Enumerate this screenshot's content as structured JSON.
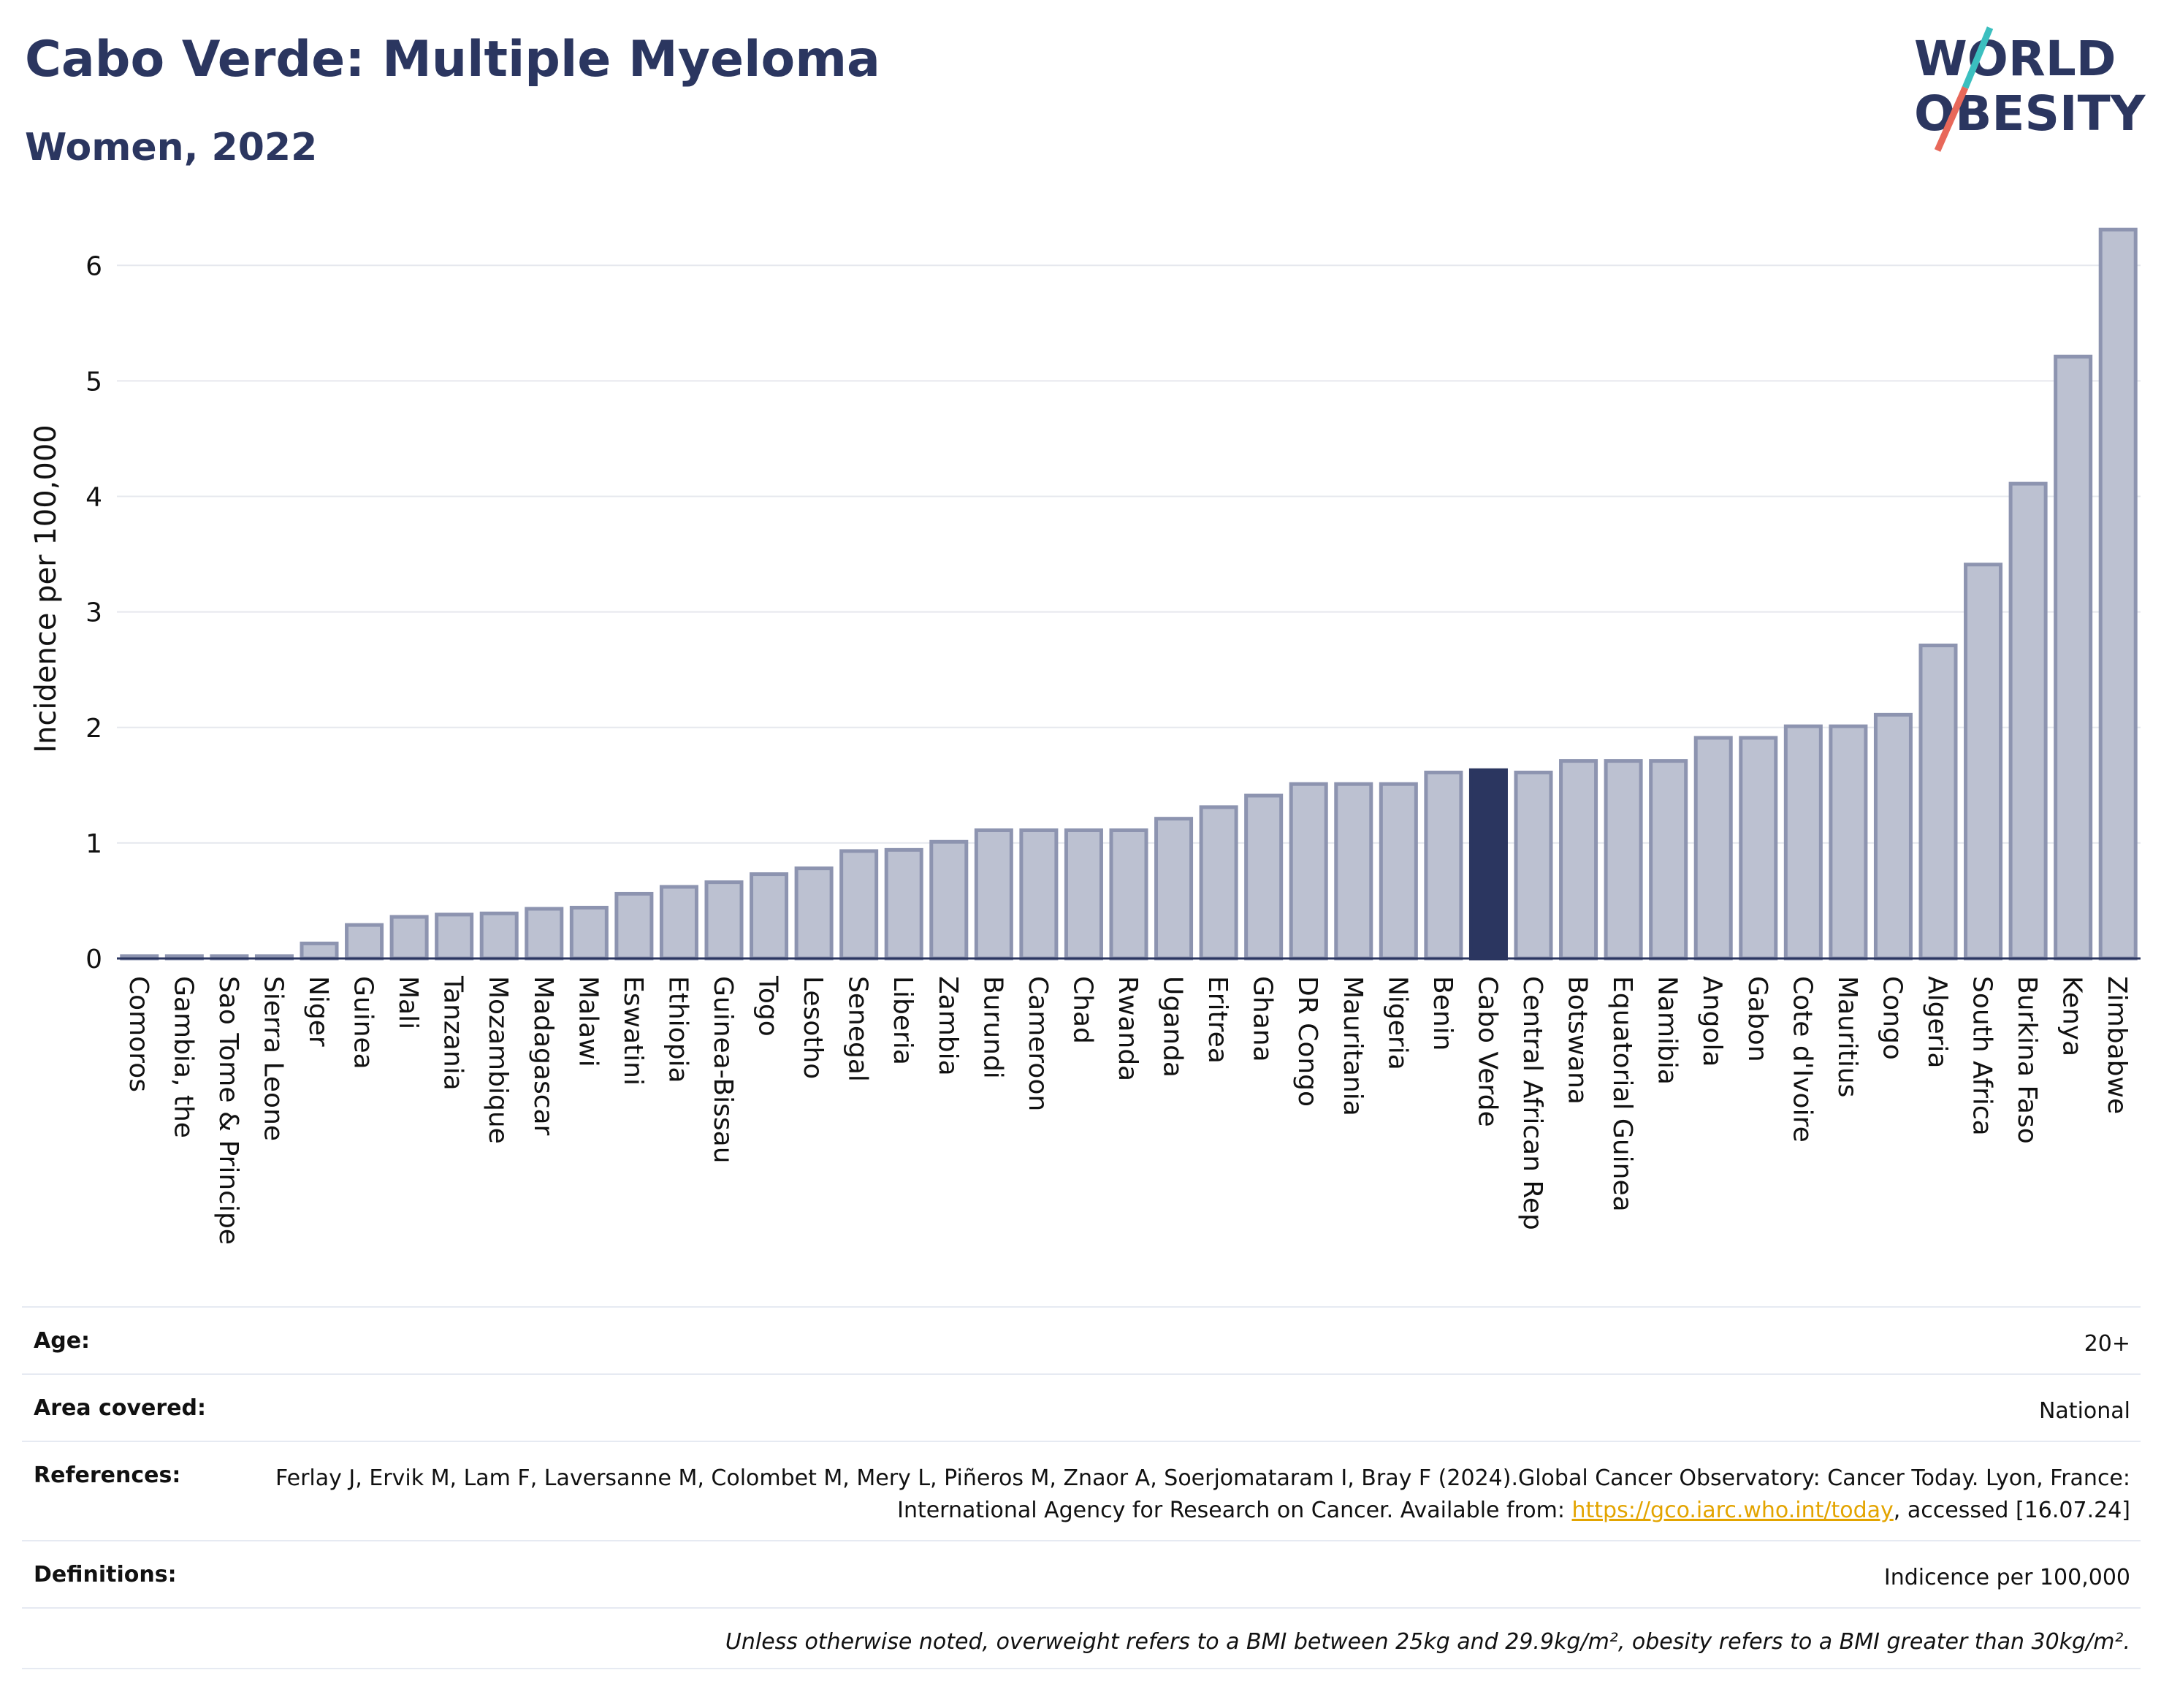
{
  "header": {
    "title": "Cabo Verde: Multiple Myeloma",
    "subtitle": "Women, 2022"
  },
  "logo": {
    "line1": "WORLD",
    "line2": "OBESITY",
    "colors": {
      "text": "#2b3660",
      "slash_top": "#3bbfbf",
      "slash_bottom": "#e8685a"
    }
  },
  "chart_data": {
    "type": "bar",
    "ylabel": "Incidence per 100,000",
    "xlabel": "",
    "ylim": [
      0,
      6.4
    ],
    "yticks": [
      0,
      1,
      2,
      3,
      4,
      5,
      6
    ],
    "grid": true,
    "highlight": "Cabo Verde",
    "colors": {
      "bar": "#bcc1d1",
      "bar_edge": "#8d94b0",
      "highlight": "#2b3660",
      "grid": "#e6e8ee"
    },
    "categories": [
      "Comoros",
      "Gambia, the",
      "Sao Tome & Principe",
      "Sierra Leone",
      "Niger",
      "Guinea",
      "Mali",
      "Tanzania",
      "Mozambique",
      "Madagascar",
      "Malawi",
      "Eswatini",
      "Ethiopia",
      "Guinea-Bissau",
      "Togo",
      "Lesotho",
      "Senegal",
      "Liberia",
      "Zambia",
      "Burundi",
      "Cameroon",
      "Chad",
      "Rwanda",
      "Uganda",
      "Eritrea",
      "Ghana",
      "DR Congo",
      "Mauritania",
      "Nigeria",
      "Benin",
      "Cabo Verde",
      "Central African Rep",
      "Botswana",
      "Equatorial Guinea",
      "Namibia",
      "Angola",
      "Gabon",
      "Cote d'Ivoire",
      "Mauritius",
      "Congo",
      "Algeria",
      "South Africa",
      "Burkina Faso",
      "Kenya",
      "Zimbabwe"
    ],
    "values": [
      0.02,
      0.02,
      0.02,
      0.02,
      0.13,
      0.29,
      0.36,
      0.38,
      0.39,
      0.43,
      0.44,
      0.56,
      0.62,
      0.66,
      0.73,
      0.78,
      0.93,
      0.94,
      1.01,
      1.11,
      1.11,
      1.11,
      1.11,
      1.21,
      1.31,
      1.41,
      1.51,
      1.51,
      1.51,
      1.61,
      1.63,
      1.61,
      1.71,
      1.71,
      1.71,
      1.91,
      1.91,
      2.01,
      2.01,
      2.11,
      2.71,
      3.41,
      4.11,
      5.21,
      6.31
    ]
  },
  "meta": {
    "age_label": "Age:",
    "age_value": "20+",
    "area_label": "Area covered:",
    "area_value": "National",
    "references_label": "References:",
    "references_text_1": "Ferlay J, Ervik M, Lam F, Laversanne M, Colombet M, Mery L, Piñeros M, Znaor A, Soerjomataram I, Bray F (2024).Global Cancer Observatory: Cancer Today. Lyon, France: International Agency for Research on Cancer. Available from: ",
    "references_link": "https://gco.iarc.who.int/today",
    "references_text_2": ", accessed [16.07.24]",
    "definitions_label": "Definitions:",
    "definitions_value": "Indicence per 100,000",
    "note": "Unless otherwise noted, overweight refers to a BMI between 25kg and 29.9kg/m², obesity refers to a BMI greater than 30kg/m²."
  }
}
